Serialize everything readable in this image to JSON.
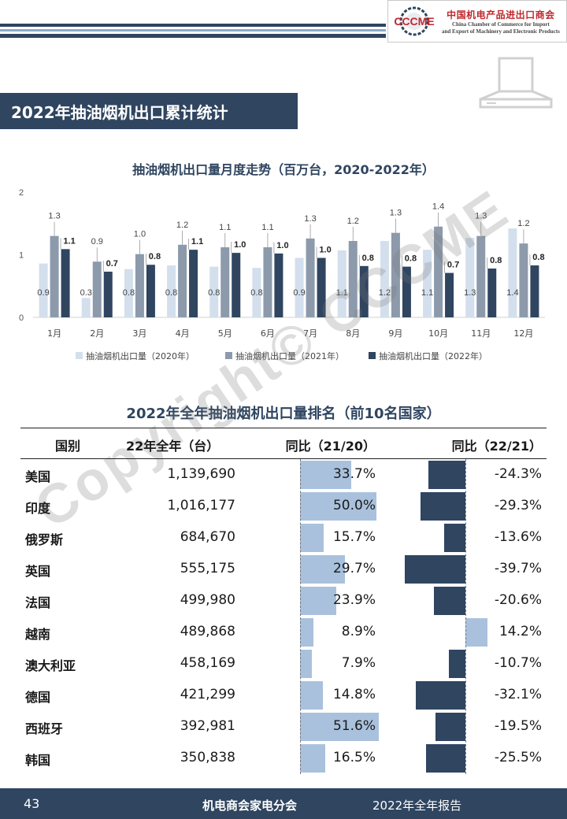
{
  "header": {
    "logo_mark_text": "CCCME",
    "logo_cn": "中国机电产品进出口商会",
    "logo_en_line1": "China Chamber of Commerce for Import",
    "logo_en_line2": "and Export of Machinery and Electronic Products",
    "stripe_colors": [
      "#2f4560",
      "#8ea9c8",
      "#2f4560"
    ]
  },
  "section_title": "2022年抽油烟机出口累计统计",
  "chart_title": "抽油烟机出口量月度走势（百万台，2020-2022年）",
  "chart_data": {
    "type": "bar",
    "categories": [
      "1月",
      "2月",
      "3月",
      "4月",
      "5月",
      "6月",
      "7月",
      "8月",
      "9月",
      "10月",
      "11月",
      "12月"
    ],
    "yticks": [
      "0",
      "1",
      "2"
    ],
    "ylim": [
      0,
      2
    ],
    "grid": false,
    "legend_position": "bottom",
    "series": [
      {
        "name": "抽油烟机出口量（2020年）",
        "color": "#d3dfec",
        "values": [
          0.86,
          0.31,
          0.77,
          0.83,
          0.81,
          0.79,
          0.95,
          1.07,
          1.22,
          1.08,
          1.27,
          1.42
        ],
        "labels": [
          "0.9",
          "0.3",
          "0.8",
          "0.8",
          "0.8",
          "0.8",
          "0.9",
          "1.1",
          "1.2",
          "1.1",
          "1.3",
          "1.4"
        ]
      },
      {
        "name": "抽油烟机出口量（2021年）",
        "color": "#8c9aab",
        "values": [
          1.3,
          0.89,
          1.01,
          1.16,
          1.12,
          1.12,
          1.26,
          1.22,
          1.35,
          1.45,
          1.3,
          1.18
        ],
        "labels": [
          "1.3",
          "0.9",
          "1.0",
          "1.2",
          "1.1",
          "1.1",
          "1.3",
          "1.2",
          "1.3",
          "1.4",
          "1.3",
          "1.2"
        ]
      },
      {
        "name": "抽油烟机出口量（2022年）",
        "color": "#2f4560",
        "values": [
          1.09,
          0.73,
          0.84,
          1.08,
          1.03,
          1.02,
          0.95,
          0.82,
          0.81,
          0.71,
          0.78,
          0.83
        ],
        "labels": [
          "1.1",
          "0.7",
          "0.8",
          "1.1",
          "1.0",
          "1.0",
          "1.0",
          "0.8",
          "0.8",
          "0.7",
          "0.8",
          "0.8"
        ]
      }
    ]
  },
  "table_title": "2022年全年抽油烟机出口量排名（前10名国家）",
  "table": {
    "headers": {
      "country": "国别",
      "value": "22年全年（台）",
      "yoy1": "同比（21/20）",
      "yoy2": "同比（22/21）"
    },
    "rows": [
      {
        "country": "美国",
        "value": "1,139,690",
        "yoy1_label": "33.7%",
        "yoy1": 33.7,
        "yoy2_label": "-24.3%",
        "yoy2": -24.3
      },
      {
        "country": "印度",
        "value": "1,016,177",
        "yoy1_label": "50.0%",
        "yoy1": 50.0,
        "yoy2_label": "-29.3%",
        "yoy2": -29.3
      },
      {
        "country": "俄罗斯",
        "value": "684,670",
        "yoy1_label": "15.7%",
        "yoy1": 15.7,
        "yoy2_label": "-13.6%",
        "yoy2": -13.6
      },
      {
        "country": "英国",
        "value": "555,175",
        "yoy1_label": "29.7%",
        "yoy1": 29.7,
        "yoy2_label": "-39.7%",
        "yoy2": -39.7
      },
      {
        "country": "法国",
        "value": "499,980",
        "yoy1_label": "23.9%",
        "yoy1": 23.9,
        "yoy2_label": "-20.6%",
        "yoy2": -20.6
      },
      {
        "country": "越南",
        "value": "489,868",
        "yoy1_label": "8.9%",
        "yoy1": 8.9,
        "yoy2_label": "14.2%",
        "yoy2": 14.2
      },
      {
        "country": "澳大利亚",
        "value": "458,169",
        "yoy1_label": "7.9%",
        "yoy1": 7.9,
        "yoy2_label": "-10.7%",
        "yoy2": -10.7
      },
      {
        "country": "德国",
        "value": "421,299",
        "yoy1_label": "14.8%",
        "yoy1": 14.8,
        "yoy2_label": "-32.1%",
        "yoy2": -32.1
      },
      {
        "country": "西班牙",
        "value": "392,981",
        "yoy1_label": "51.6%",
        "yoy1": 51.6,
        "yoy2_label": "-19.5%",
        "yoy2": -19.5
      },
      {
        "country": "韩国",
        "value": "350,838",
        "yoy1_label": "16.5%",
        "yoy1": 16.5,
        "yoy2_label": "-25.5%",
        "yoy2": -25.5
      }
    ]
  },
  "watermark": "Copyright© CCCME",
  "footer": {
    "page_number": "43",
    "org": "机电商会家电分会",
    "report": "2022年全年报告"
  }
}
